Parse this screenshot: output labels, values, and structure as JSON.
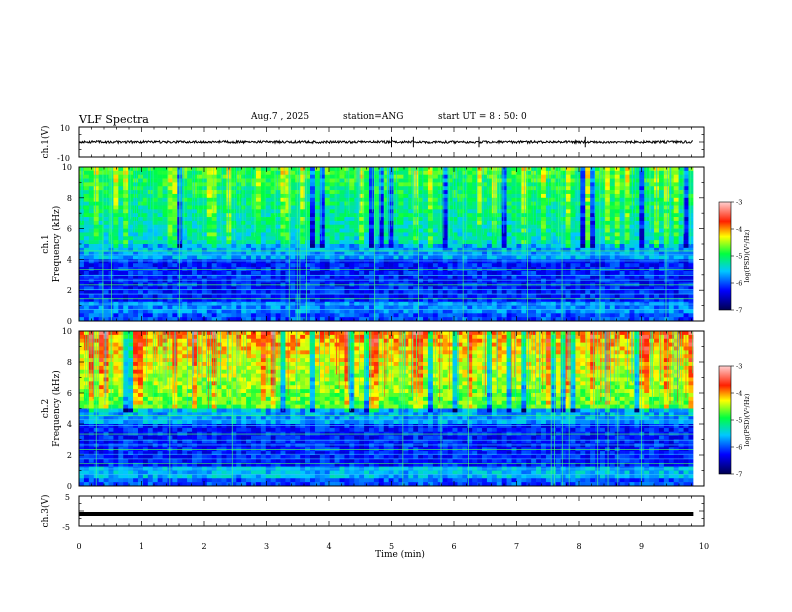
{
  "header": {
    "title": "VLF Spectra",
    "date": "Aug.7 , 2025",
    "station": "station=ANG",
    "start": "start UT = 8 : 50: 0"
  },
  "colors": {
    "spectrogram_low": "#000a6e",
    "spectrogram_mid": "#1e8cff",
    "spectrogram_green": "#33e033",
    "spectrogram_high": "#e02020",
    "waveform": "#000000"
  },
  "chart_data": [
    {
      "type": "line",
      "name": "ch1-waveform",
      "ylabel": "ch.1(V)",
      "ylim": [
        -10,
        10
      ],
      "yticks": [
        "10",
        "-10"
      ],
      "xlim": [
        0,
        10
      ],
      "baseline": 0,
      "description_values": {
        "typical_amplitude": 0.6,
        "spikes_at_min": [
          5.0,
          5.35,
          6.4,
          8.1
        ]
      }
    },
    {
      "type": "heatmap",
      "name": "ch1-spectrogram",
      "ylabel_top": "ch.1",
      "ylabel": "Frequency (kHz)",
      "ylim": [
        0,
        10
      ],
      "yticks": [
        "0",
        "2",
        "4",
        "6",
        "8",
        "10"
      ],
      "xlim": [
        0,
        10.0
      ],
      "data_end_min": 9.83,
      "colorbar": {
        "label": "log(PSD)(V²/Hz)",
        "ticks": [
          "-3",
          "-4",
          "-5",
          "-6",
          "-7"
        ],
        "range": [
          -7,
          -3
        ]
      }
    },
    {
      "type": "heatmap",
      "name": "ch2-spectrogram",
      "ylabel_top": "ch.2",
      "ylabel": "Frequency (kHz)",
      "ylim": [
        0,
        10
      ],
      "yticks": [
        "0",
        "2",
        "4",
        "6",
        "8",
        "10"
      ],
      "xlim": [
        0,
        10.0
      ],
      "data_end_min": 9.83,
      "colorbar": {
        "label": "log(PSD)(V²/Hz)",
        "ticks": [
          "-3",
          "-4",
          "-5",
          "-6",
          "-7"
        ],
        "range": [
          -7,
          -3
        ]
      }
    },
    {
      "type": "line",
      "name": "ch3-waveform",
      "ylabel": "ch.3(V)",
      "ylim": [
        -5,
        5
      ],
      "yticks": [
        "5",
        "-5"
      ],
      "xlim": [
        0,
        10
      ],
      "baseline": -1.0
    }
  ],
  "xaxis": {
    "label": "Time (min)",
    "ticks": [
      "0",
      "1",
      "2",
      "3",
      "4",
      "5",
      "6",
      "7",
      "8",
      "9",
      "10"
    ]
  }
}
